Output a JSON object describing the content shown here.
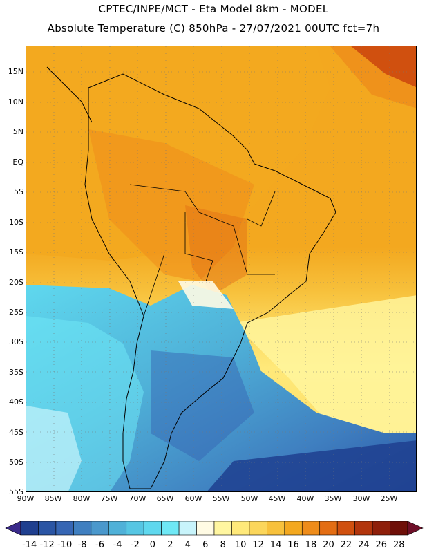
{
  "header": {
    "line1": "CPTEC/INPE/MCT -  Eta Model 8km - MODEL",
    "line2": "Absolute Temperature (C) 850hPa - 27/07/2021 00UTC fct=7h"
  },
  "map": {
    "lat_labels": [
      "15N",
      "10N",
      "5N",
      "EQ",
      "5S",
      "10S",
      "15S",
      "20S",
      "25S",
      "30S",
      "35S",
      "40S",
      "45S",
      "50S",
      "55S"
    ],
    "lon_labels": [
      "90W",
      "85W",
      "80W",
      "75W",
      "70W",
      "65W",
      "60W",
      "55W",
      "50W",
      "45W",
      "40W",
      "35W",
      "30W",
      "25W"
    ]
  },
  "colorbar": {
    "labels": [
      "-14",
      "-12",
      "-10",
      "-8",
      "-6",
      "-4",
      "-2",
      "0",
      "2",
      "4",
      "6",
      "8",
      "10",
      "12",
      "14",
      "16",
      "18",
      "20",
      "22",
      "24",
      "26",
      "28"
    ],
    "colors": [
      "#1f3f8f",
      "#2a55a4",
      "#3666b4",
      "#3f7fc0",
      "#4a98cc",
      "#4fb1d8",
      "#56c6e3",
      "#5fd8ee",
      "#6fe8f5",
      "#c8f4fb",
      "#fffbe4",
      "#fff6a0",
      "#ffe97a",
      "#fbd65b",
      "#f7c13c",
      "#f3a81f",
      "#ee8c1a",
      "#e36d13",
      "#d0500f",
      "#b2350c",
      "#8e1f0a",
      "#6e0f08"
    ]
  }
}
